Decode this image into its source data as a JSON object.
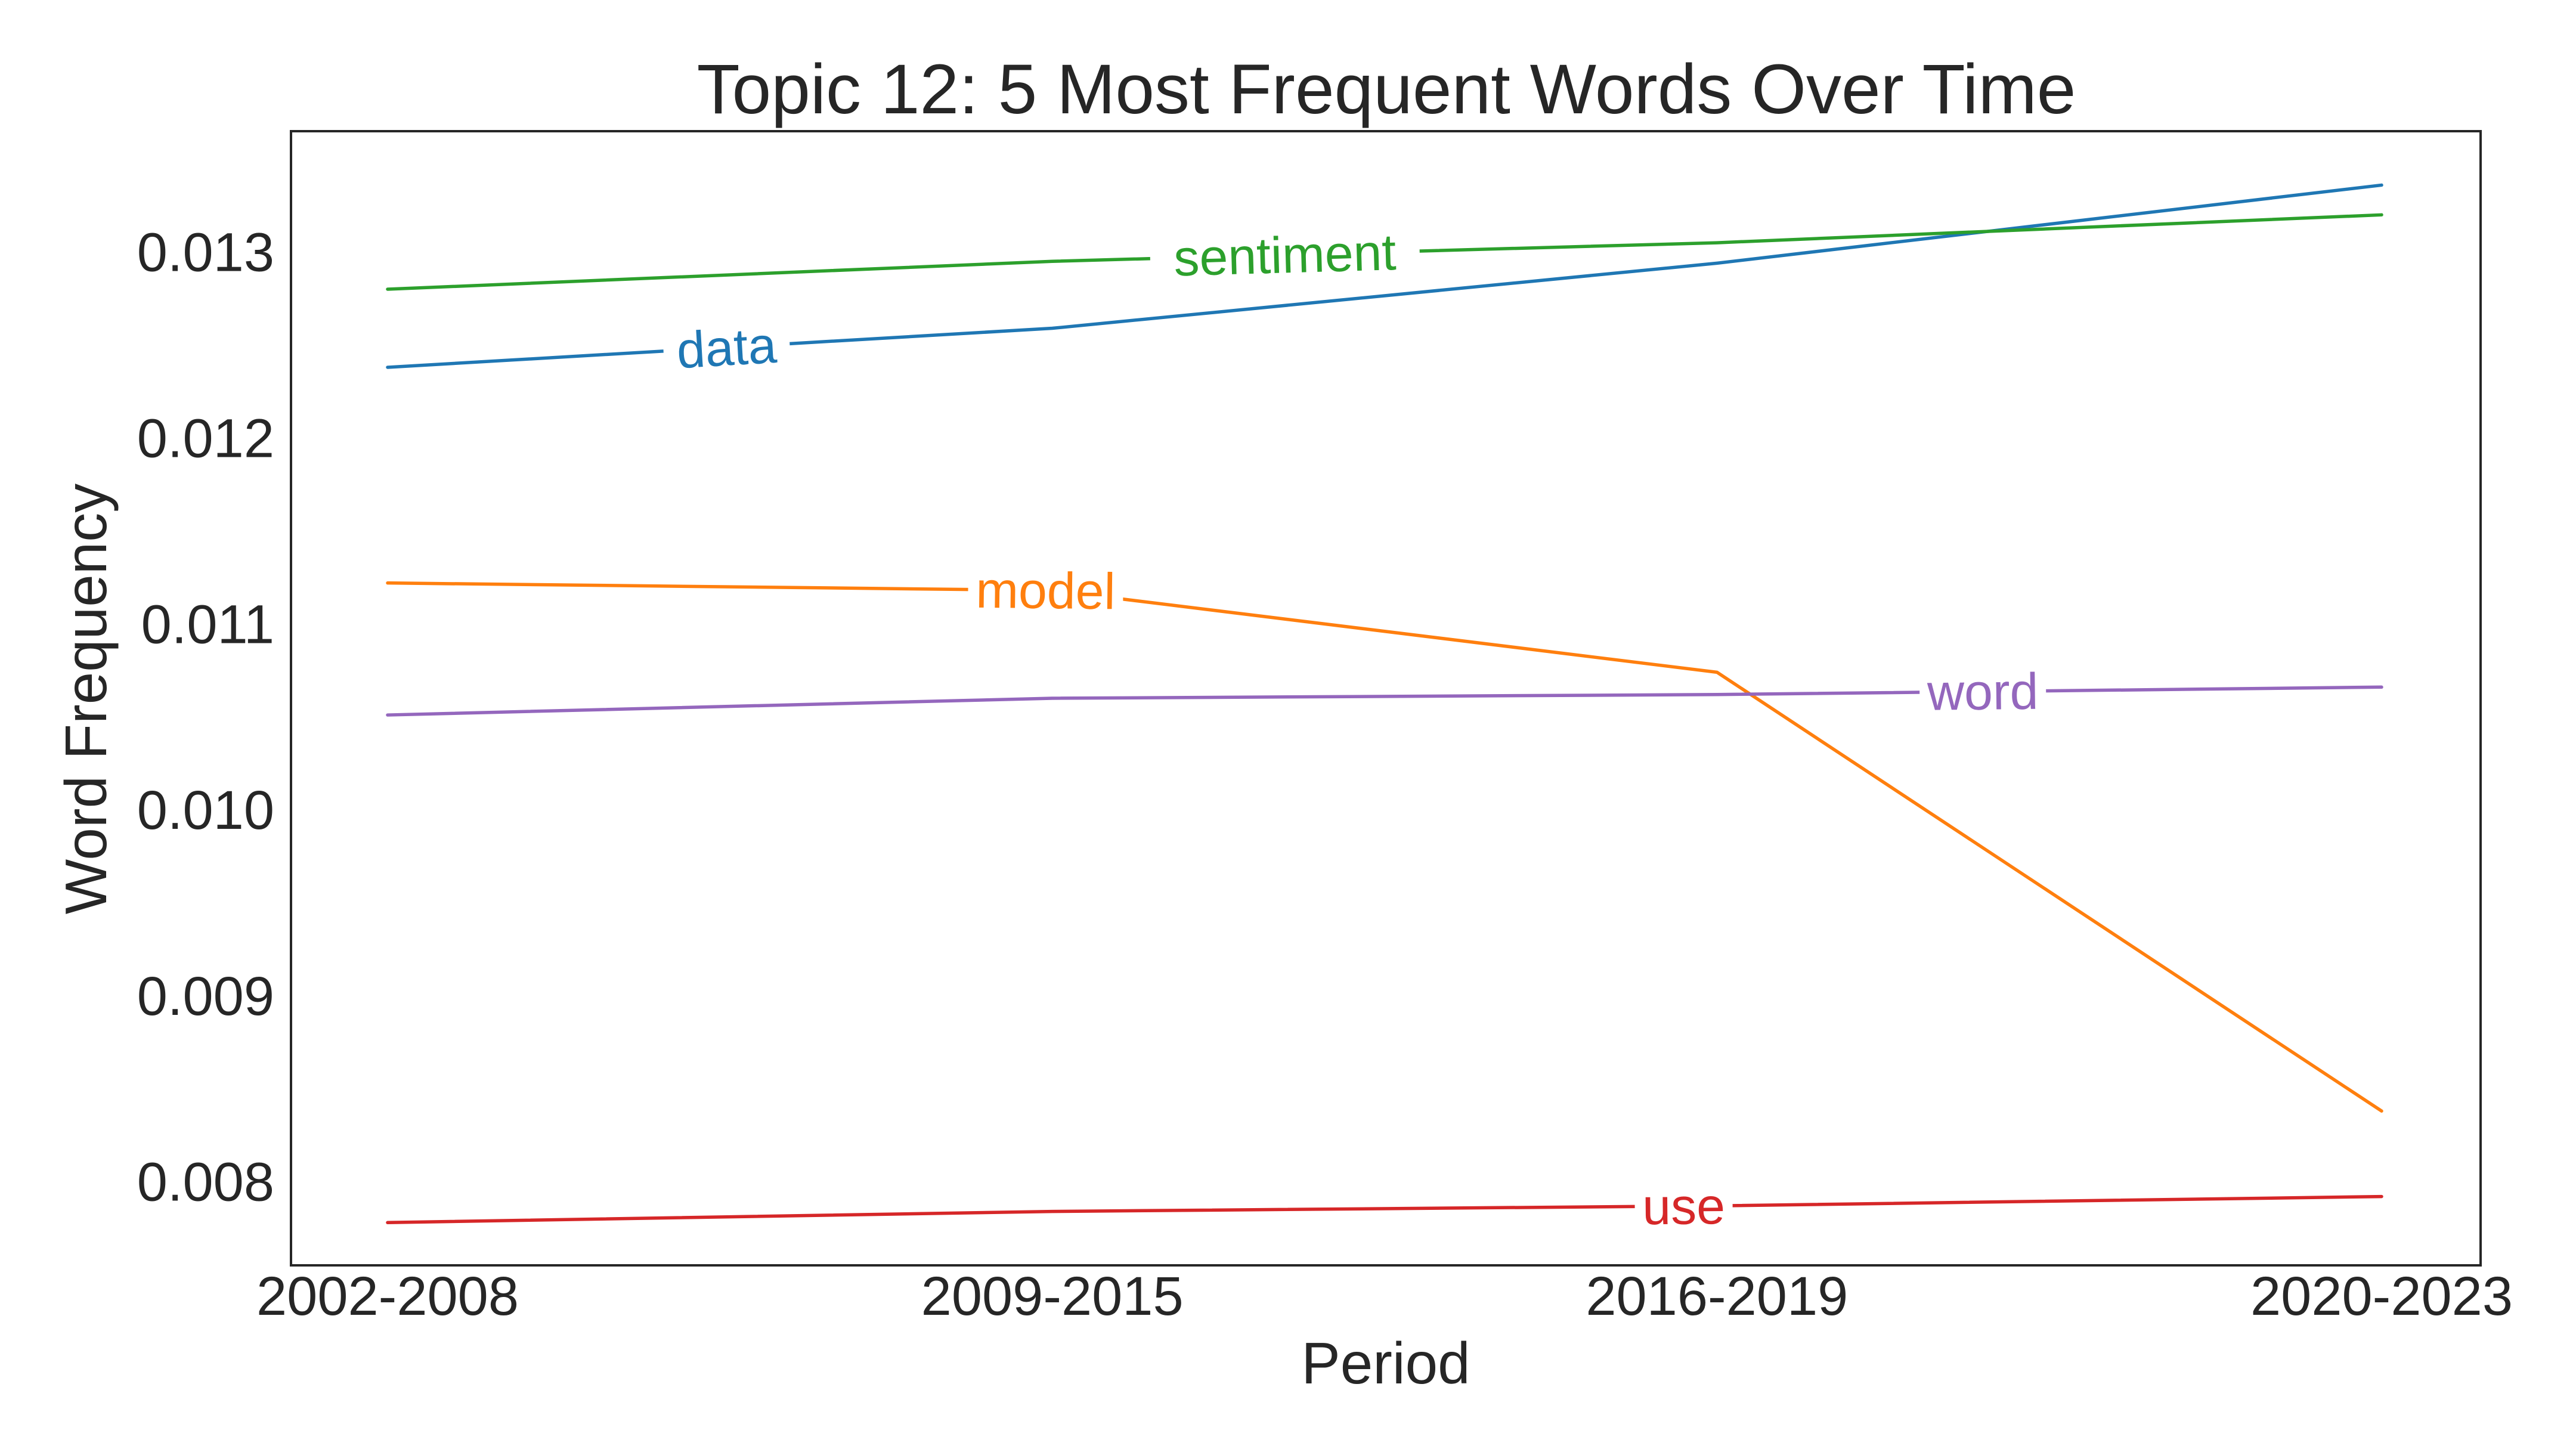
{
  "chart_data": {
    "type": "line",
    "title": "Topic 12: 5 Most Frequent Words Over Time",
    "xlabel": "Period",
    "ylabel": "Word Frequency",
    "categories": [
      "2002-2008",
      "2009-2015",
      "2016-2019",
      "2020-2023"
    ],
    "ylim": [
      0.00755,
      0.01365
    ],
    "yticks": [
      "0.008",
      "0.009",
      "0.010",
      "0.011",
      "0.012",
      "0.013"
    ],
    "grid": false,
    "legend": "inline labels on lines",
    "series": [
      {
        "name": "data",
        "color": "#1f77b4",
        "values": [
          0.01238,
          0.01259,
          0.01294,
          0.01336
        ]
      },
      {
        "name": "sentiment",
        "color": "#2ca02c",
        "values": [
          0.0128,
          0.01295,
          0.01305,
          0.0132
        ]
      },
      {
        "name": "model",
        "color": "#ff7f0e",
        "values": [
          0.01122,
          0.01118,
          0.01074,
          0.00838
        ]
      },
      {
        "name": "word",
        "color": "#9467bd",
        "values": [
          0.01051,
          0.0106,
          0.01062,
          0.01066
        ]
      },
      {
        "name": "use",
        "color": "#d62728",
        "values": [
          0.00778,
          0.00784,
          0.00787,
          0.00792
        ]
      }
    ]
  }
}
